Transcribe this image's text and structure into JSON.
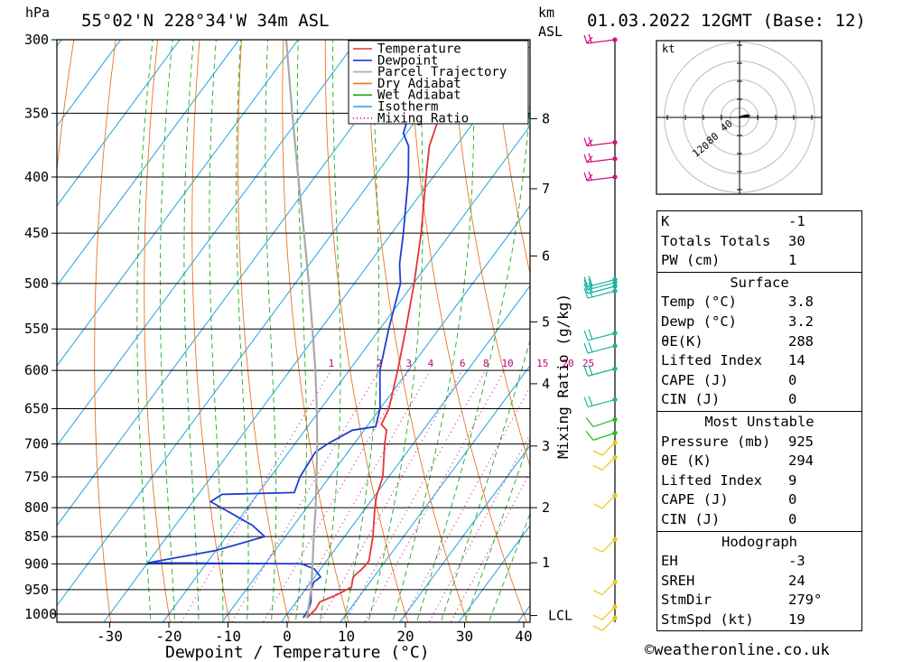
{
  "header": {
    "pressure_unit": "hPa",
    "location": "55°02'N  228°34'W  34m  ASL",
    "height_unit_line1": "km",
    "height_unit_line2": "ASL",
    "datetime": "01.03.2022  12GMT  (Base: 12)"
  },
  "chart_data": {
    "type": "line",
    "title": "55°02'N  228°34'W  34m  ASL",
    "xlabel": "Dewpoint / Temperature (°C)",
    "ylabel": "hPa",
    "y2label": "Mixing Ratio (g/kg)",
    "y_scale": "log",
    "pressure_levels": [
      300,
      350,
      400,
      450,
      500,
      550,
      600,
      650,
      700,
      750,
      800,
      850,
      900,
      950,
      1000
    ],
    "temperature_ticks": [
      -30,
      -20,
      -10,
      0,
      10,
      20,
      30,
      40
    ],
    "xlim": [
      -38,
      40
    ],
    "ylim": [
      1000,
      300
    ],
    "height_ticks_km": [
      {
        "label": "8",
        "p": 354
      },
      {
        "label": "7",
        "p": 410
      },
      {
        "label": "6",
        "p": 472
      },
      {
        "label": "5",
        "p": 542
      },
      {
        "label": "4",
        "p": 617
      },
      {
        "label": "3",
        "p": 703
      },
      {
        "label": "2",
        "p": 800
      },
      {
        "label": "1",
        "p": 898
      },
      {
        "label": "LCL",
        "p": 1003
      }
    ],
    "mixing_ratio_labels": [
      "1",
      "2",
      "3",
      "4",
      "6",
      "8",
      "10",
      "15",
      "20",
      "25"
    ],
    "legend": [
      "Temperature",
      "Dewpoint",
      "Parcel Trajectory",
      "Dry Adiabat",
      "Wet Adiabat",
      "Isotherm",
      "Mixing Ratio"
    ],
    "legend_position": "top-right",
    "colors": {
      "temperature": "#e8333a",
      "dewpoint": "#1f3fd0",
      "parcel": "#aaaaaa",
      "dry_adiabat": "#e87722",
      "wet_adiabat": "#22aa22",
      "isotherm": "#1ea3e0",
      "mixing_ratio": "#c0007a",
      "wind_pink": "#d0107a",
      "wind_teal": "#18b39a",
      "wind_green": "#22bb22",
      "wind_yellow": "#e8c81a"
    },
    "series": [
      {
        "name": "Temperature",
        "points": [
          [
            1008,
            3.8
          ],
          [
            990,
            4.2
          ],
          [
            975,
            4.0
          ],
          [
            960,
            6.0
          ],
          [
            945,
            7.5
          ],
          [
            925,
            6.5
          ],
          [
            910,
            7.0
          ],
          [
            895,
            7.2
          ],
          [
            850,
            4.8
          ],
          [
            800,
            1.5
          ],
          [
            780,
            0.3
          ],
          [
            750,
            -1.0
          ],
          [
            700,
            -4.8
          ],
          [
            680,
            -6.2
          ],
          [
            672,
            -7.8
          ],
          [
            650,
            -8.5
          ],
          [
            600,
            -11.8
          ],
          [
            550,
            -15.6
          ],
          [
            500,
            -19.9
          ],
          [
            450,
            -25.0
          ],
          [
            400,
            -31.2
          ],
          [
            375,
            -34.5
          ],
          [
            358,
            -36.0
          ],
          [
            350,
            -37.5
          ],
          [
            300,
            -45.0
          ]
        ]
      },
      {
        "name": "Dewpoint",
        "points": [
          [
            1008,
            3.2
          ],
          [
            990,
            3.0
          ],
          [
            975,
            2.5
          ],
          [
            950,
            1.0
          ],
          [
            935,
            0.5
          ],
          [
            925,
            1.0
          ],
          [
            910,
            -1.0
          ],
          [
            900,
            -3.8
          ],
          [
            898,
            -30.0
          ],
          [
            875,
            -20.0
          ],
          [
            850,
            -13.5
          ],
          [
            830,
            -17.0
          ],
          [
            790,
            -27.0
          ],
          [
            778,
            -26.0
          ],
          [
            775,
            -14.0
          ],
          [
            750,
            -15.0
          ],
          [
            712,
            -15.5
          ],
          [
            700,
            -14.5
          ],
          [
            680,
            -12.0
          ],
          [
            675,
            -8.5
          ],
          [
            650,
            -10.0
          ],
          [
            600,
            -14.8
          ],
          [
            550,
            -18.5
          ],
          [
            500,
            -22.2
          ],
          [
            480,
            -24.8
          ],
          [
            450,
            -28.0
          ],
          [
            400,
            -34.2
          ],
          [
            375,
            -38.0
          ],
          [
            365,
            -40.5
          ],
          [
            350,
            -42.0
          ],
          [
            300,
            -51.0
          ]
        ]
      },
      {
        "name": "Parcel Trajectory",
        "points": [
          [
            1008,
            3.8
          ],
          [
            950,
            1.0
          ],
          [
            900,
            -2.0
          ],
          [
            850,
            -5.2
          ],
          [
            800,
            -8.5
          ],
          [
            750,
            -12.2
          ],
          [
            700,
            -16.2
          ],
          [
            650,
            -20.7
          ],
          [
            600,
            -25.7
          ],
          [
            550,
            -31.4
          ],
          [
            500,
            -37.7
          ],
          [
            450,
            -44.8
          ],
          [
            400,
            -52.8
          ],
          [
            350,
            -61.8
          ],
          [
            300,
            -72.0
          ]
        ]
      }
    ],
    "wind_barbs": [
      {
        "p": 300,
        "color": "pink"
      },
      {
        "p": 372,
        "color": "pink"
      },
      {
        "p": 385,
        "color": "pink"
      },
      {
        "p": 400,
        "color": "pink"
      },
      {
        "p": 496,
        "color": "teal"
      },
      {
        "p": 499,
        "color": "teal"
      },
      {
        "p": 503,
        "color": "teal"
      },
      {
        "p": 508,
        "color": "teal"
      },
      {
        "p": 555,
        "color": "teal"
      },
      {
        "p": 570,
        "color": "teal"
      },
      {
        "p": 598,
        "color": "teal"
      },
      {
        "p": 638,
        "color": "teal"
      },
      {
        "p": 665,
        "color": "green"
      },
      {
        "p": 684,
        "color": "green"
      },
      {
        "p": 698,
        "color": "yellow"
      },
      {
        "p": 720,
        "color": "yellow"
      },
      {
        "p": 780,
        "color": "yellow"
      },
      {
        "p": 855,
        "color": "yellow"
      },
      {
        "p": 935,
        "color": "yellow"
      },
      {
        "p": 985,
        "color": "yellow"
      },
      {
        "p": 1008,
        "color": "yellow"
      }
    ]
  },
  "hodograph": {
    "unit_label": "kt",
    "ring_labels": [
      "40",
      "80",
      "120"
    ],
    "points": [
      [
        0,
        0
      ],
      [
        4,
        1
      ],
      [
        9,
        2
      ],
      [
        14,
        2
      ],
      [
        18,
        3
      ],
      [
        20,
        4
      ],
      [
        17,
        5
      ],
      [
        13,
        4
      ],
      [
        8,
        3
      ],
      [
        5,
        2
      ],
      [
        10,
        1
      ],
      [
        15,
        3
      ]
    ]
  },
  "indices": {
    "general": [
      {
        "label": "K",
        "value": "-1"
      },
      {
        "label": "Totals Totals",
        "value": "30"
      },
      {
        "label": "PW (cm)",
        "value": "1"
      }
    ],
    "surface": {
      "title": "Surface",
      "rows": [
        {
          "label": "Temp (°C)",
          "value": "3.8"
        },
        {
          "label": "Dewp (°C)",
          "value": "3.2"
        },
        {
          "label": "θE(K)",
          "value": "288"
        },
        {
          "label": "Lifted Index",
          "value": "14"
        },
        {
          "label": "CAPE (J)",
          "value": "0"
        },
        {
          "label": "CIN (J)",
          "value": "0"
        }
      ]
    },
    "most_unstable": {
      "title": "Most Unstable",
      "rows": [
        {
          "label": "Pressure (mb)",
          "value": "925"
        },
        {
          "label": "θE (K)",
          "value": "294"
        },
        {
          "label": "Lifted Index",
          "value": "9"
        },
        {
          "label": "CAPE (J)",
          "value": "0"
        },
        {
          "label": "CIN (J)",
          "value": "0"
        }
      ]
    },
    "hodograph_box": {
      "title": "Hodograph",
      "rows": [
        {
          "label": "EH",
          "value": "-3"
        },
        {
          "label": "SREH",
          "value": "24"
        },
        {
          "label": "StmDir",
          "value": "279°"
        },
        {
          "label": "StmSpd (kt)",
          "value": "19"
        }
      ]
    }
  },
  "footer": {
    "credit": "©weatheronline.co.uk"
  }
}
